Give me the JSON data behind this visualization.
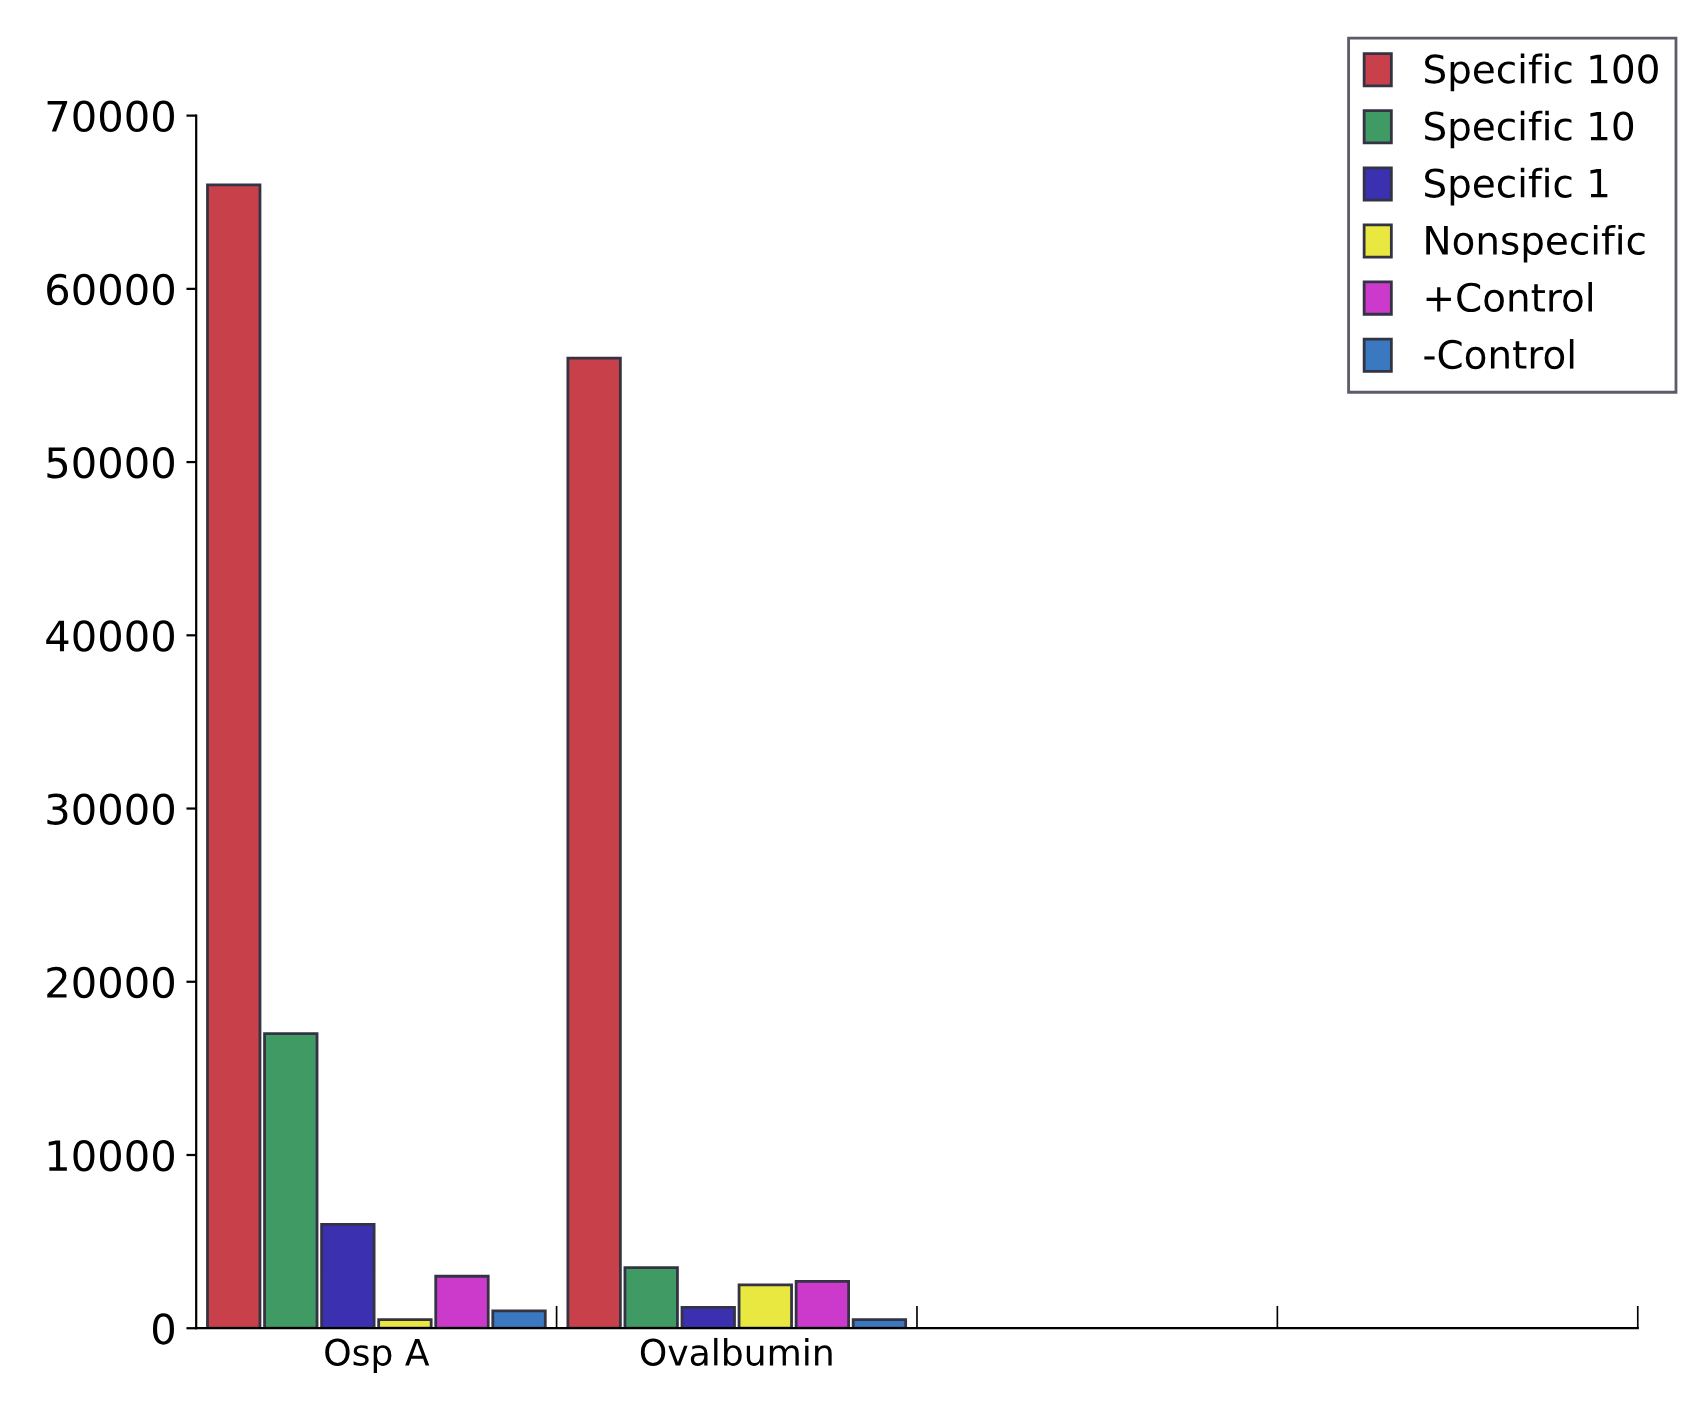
{
  "chart_data": {
    "type": "bar",
    "categories": [
      "Osp A",
      "Ovalbumin",
      null,
      null
    ],
    "series": [
      {
        "name": "Specific 100",
        "color": "#c8404a",
        "values": [
          66000,
          56000,
          null,
          null
        ]
      },
      {
        "name": "Specific 10",
        "color": "#3f9a63",
        "values": [
          17000,
          3500,
          null,
          null
        ]
      },
      {
        "name": "Specific 1",
        "color": "#3a30b0",
        "values": [
          6000,
          1200,
          null,
          null
        ]
      },
      {
        "name": "Nonspecific",
        "color": "#e8e840",
        "values": [
          500,
          2500,
          null,
          null
        ]
      },
      {
        "name": "+Control",
        "color": "#cc3acc",
        "values": [
          3000,
          2700,
          null,
          null
        ]
      },
      {
        "name": "-Control",
        "color": "#3a78c0",
        "values": [
          1000,
          500,
          null,
          null
        ]
      }
    ],
    "ylim": [
      0,
      70000
    ],
    "yticks": [
      0,
      10000,
      20000,
      30000,
      40000,
      50000,
      60000,
      70000
    ],
    "grid": false,
    "legend": "top right"
  }
}
